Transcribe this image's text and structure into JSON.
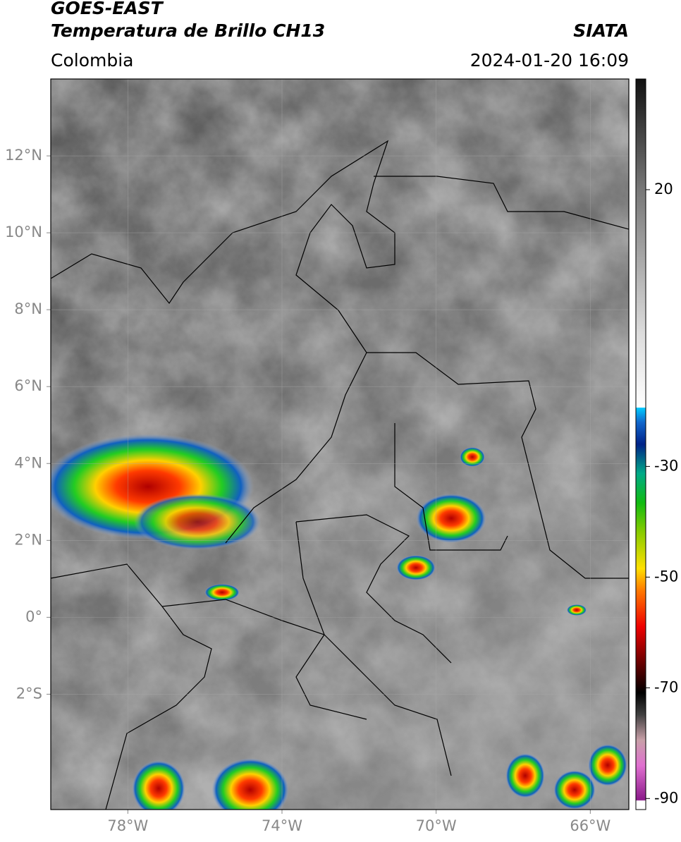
{
  "header": {
    "title": "GOES-EAST",
    "subtitle": "Temperatura de Brillo CH13",
    "source": "SIATA",
    "region": "Colombia",
    "datetime": "2024-01-20 16:09"
  },
  "map": {
    "lonlim": [
      -80,
      -65
    ],
    "latlim": [
      -5,
      14
    ],
    "lonticks": [
      {
        "value": -78,
        "label": "78°W"
      },
      {
        "value": -74,
        "label": "74°W"
      },
      {
        "value": -70,
        "label": "70°W"
      },
      {
        "value": -66,
        "label": "66°W"
      }
    ],
    "latticks": [
      {
        "value": 12,
        "label": "12°N"
      },
      {
        "value": 10,
        "label": "10°N"
      },
      {
        "value": 8,
        "label": "8°N"
      },
      {
        "value": 6,
        "label": "6°N"
      },
      {
        "value": 4,
        "label": "4°N"
      },
      {
        "value": 2,
        "label": "2°N"
      },
      {
        "value": 0,
        "label": "0°"
      },
      {
        "value": -2,
        "label": "2°S"
      }
    ],
    "grid": true
  },
  "colorbar": {
    "lim": [
      -92,
      40
    ],
    "ticks": [
      20,
      -30,
      -50,
      -70,
      -90
    ]
  }
}
